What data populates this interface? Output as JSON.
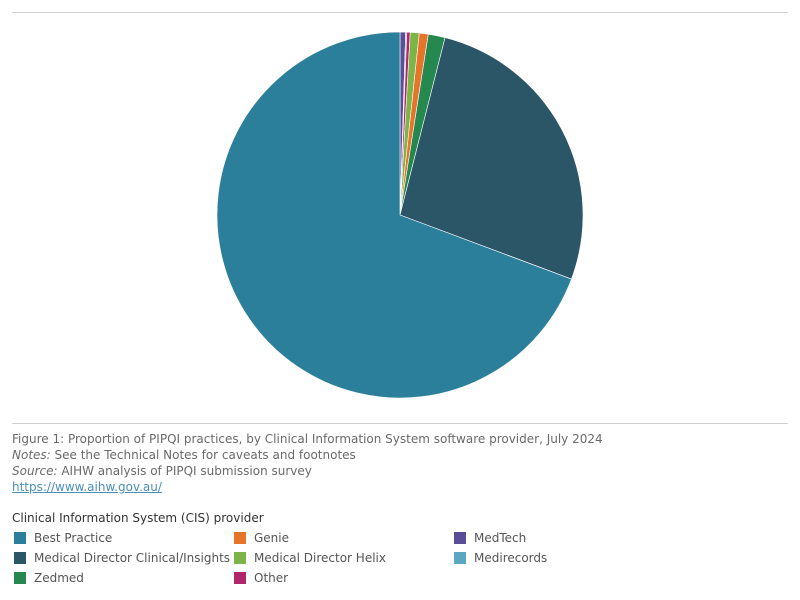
{
  "chart_data": {
    "type": "pie",
    "categories": [
      "Best Practice",
      "Medical Director Clinical/Insights",
      "Zedmed",
      "Genie",
      "Medical Director Helix",
      "Other",
      "MedTech",
      "Medirecords"
    ],
    "values": [
      70.0,
      27.0,
      1.5,
      0.8,
      0.8,
      0.3,
      0.5,
      0.1
    ],
    "colors": [
      "#2b7f9a",
      "#2b5667",
      "#25894f",
      "#e6752a",
      "#7cb447",
      "#b1266b",
      "#5a4e96",
      "#5ba7c2"
    ],
    "grid": false,
    "legend_position": "bottom"
  },
  "pie_order": [
    4,
    3,
    2,
    1,
    0
  ],
  "caption": {
    "figure": "Figure 1: Proportion of PIPQI practices, by Clinical Information System software provider, July 2024",
    "notes_label": "Notes:",
    "notes_text": " See the Technical Notes for caveats and footnotes",
    "source_label": "Source:",
    "source_text": " AIHW analysis of PIPQI submission survey",
    "link": "https://www.aihw.gov.au/"
  },
  "legend": {
    "title": "Clinical Information System (CIS) provider",
    "items": [
      {
        "label": "Best Practice",
        "color": "#2b7f9a",
        "icon": "square-swatch"
      },
      {
        "label": "Genie",
        "color": "#e6752a",
        "icon": "square-swatch"
      },
      {
        "label": "MedTech",
        "color": "#5a4e96",
        "icon": "square-swatch"
      },
      {
        "label": "Medical Director Clinical/Insights",
        "color": "#2b5667",
        "icon": "square-swatch"
      },
      {
        "label": "Medical Director Helix",
        "color": "#7cb447",
        "icon": "square-swatch"
      },
      {
        "label": "Medirecords",
        "color": "#5ba7c2",
        "icon": "square-swatch"
      },
      {
        "label": "Zedmed",
        "color": "#25894f",
        "icon": "square-swatch"
      },
      {
        "label": "Other",
        "color": "#b1266b",
        "icon": "square-swatch"
      }
    ]
  }
}
